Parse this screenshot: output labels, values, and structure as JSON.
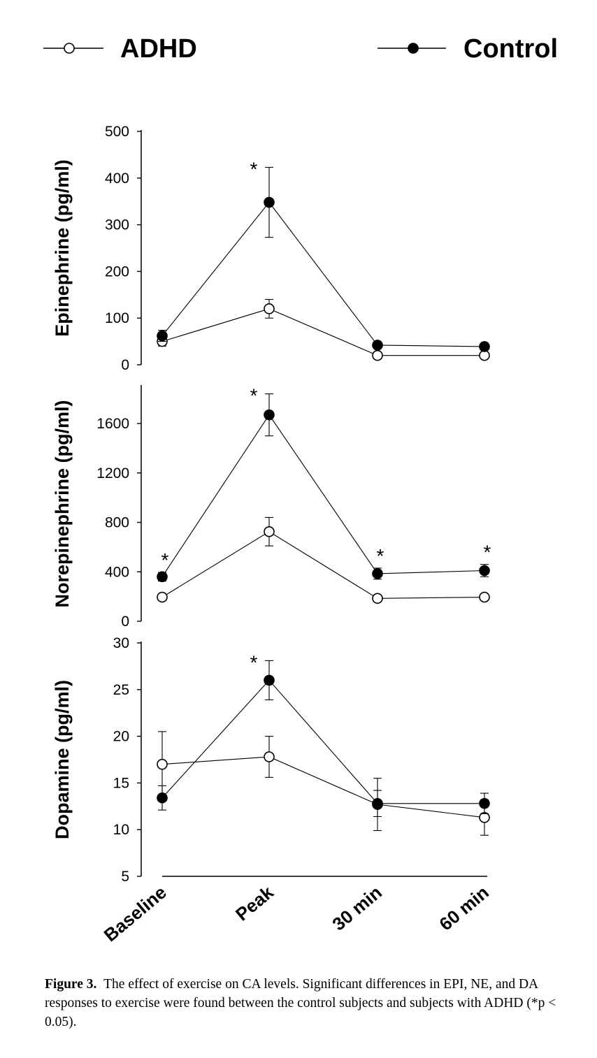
{
  "legend": [
    {
      "name": "ADHD",
      "marker": "open-circle"
    },
    {
      "name": "Control",
      "marker": "filled-circle"
    }
  ],
  "chart_data": {
    "type": "line",
    "categories": [
      "Baseline",
      "Peak",
      "30 min",
      "60 min"
    ],
    "panels": [
      {
        "ylabel": "Epinephrine (pg/ml)",
        "ylim": [
          0,
          500
        ],
        "yticks": [
          0,
          100,
          200,
          300,
          400,
          500
        ],
        "series": [
          {
            "name": "ADHD",
            "values": [
              50,
              120,
              20,
              20
            ],
            "errors": [
              10,
              20,
              3,
              3
            ]
          },
          {
            "name": "Control",
            "values": [
              62,
              348,
              42,
              39
            ],
            "errors": [
              12,
              75,
              4,
              4
            ]
          }
        ],
        "significance": [
          {
            "category": "Peak",
            "label": "*"
          }
        ]
      },
      {
        "ylabel": "Norepinephrine (pg/ml)",
        "ylim": [
          0,
          1900
        ],
        "yticks": [
          0,
          400,
          800,
          1200,
          1600
        ],
        "series": [
          {
            "name": "ADHD",
            "values": [
              195,
              725,
              185,
              195
            ],
            "errors": [
              15,
              115,
              10,
              10
            ]
          },
          {
            "name": "Control",
            "values": [
              360,
              1670,
              385,
              410
            ],
            "errors": [
              35,
              170,
              45,
              50
            ]
          }
        ],
        "significance": [
          {
            "category": "Baseline",
            "label": "*"
          },
          {
            "category": "Peak",
            "label": "*"
          },
          {
            "category": "30 min",
            "label": "*"
          },
          {
            "category": "60 min",
            "label": "*"
          }
        ]
      },
      {
        "ylabel": "Dopamine (pg/ml)",
        "ylim": [
          5,
          30
        ],
        "yticks": [
          5,
          10,
          15,
          20,
          25,
          30
        ],
        "series": [
          {
            "name": "ADHD",
            "values": [
              17.0,
              17.8,
              12.7,
              11.3
            ],
            "errors": [
              3.5,
              2.2,
              2.8,
              1.9
            ]
          },
          {
            "name": "Control",
            "values": [
              13.4,
              26.0,
              12.8,
              12.8
            ],
            "errors": [
              1.3,
              2.1,
              1.4,
              1.1
            ]
          }
        ],
        "significance": [
          {
            "category": "Peak",
            "label": "*"
          }
        ]
      }
    ]
  },
  "caption": {
    "label": "Figure 3.",
    "text": "The effect of exercise on CA levels. Significant differences in EPI, NE, and DA responses to exercise were found between the control subjects and subjects with ADHD (*p < 0.05)."
  }
}
